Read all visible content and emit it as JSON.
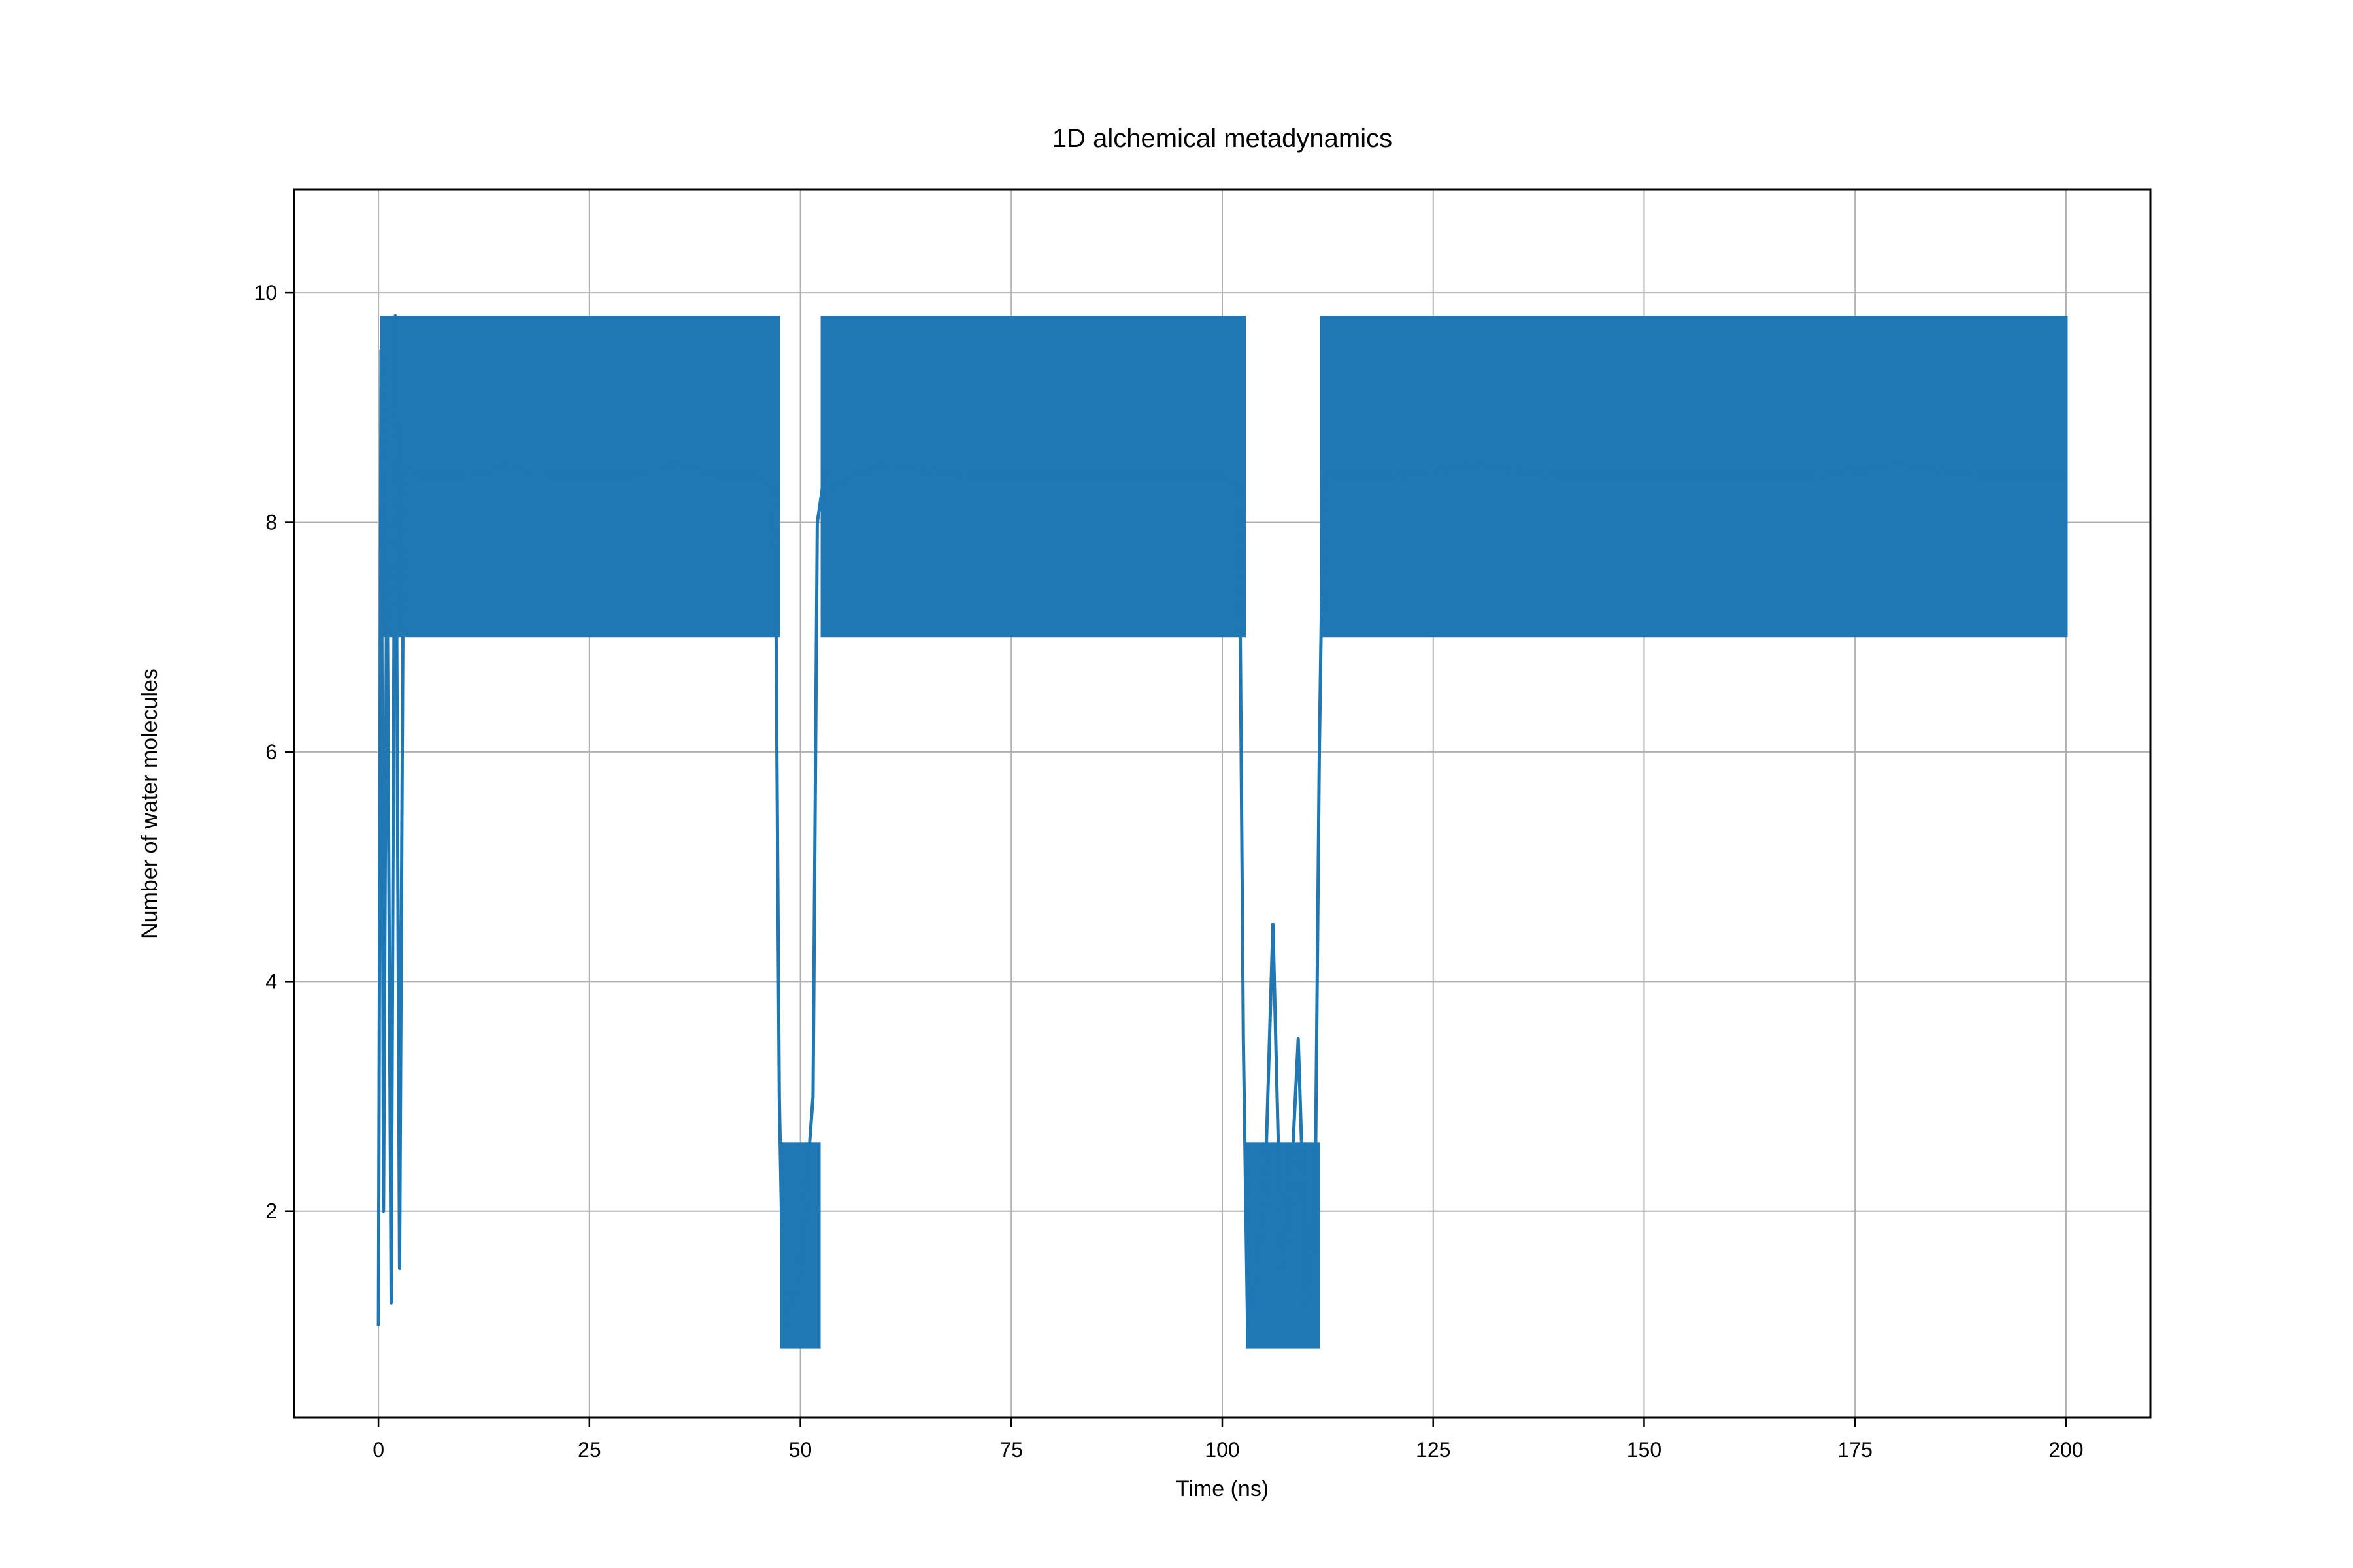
{
  "chart_data": {
    "type": "line",
    "title": "1D alchemical metadynamics",
    "xlabel": "Time (ns)",
    "ylabel": "Number of water molecules",
    "xlim": [
      -10,
      210
    ],
    "ylim": [
      0.2,
      10.9
    ],
    "x_ticks": [
      0,
      25,
      50,
      75,
      100,
      125,
      150,
      175,
      200
    ],
    "y_ticks": [
      2,
      4,
      6,
      8,
      10
    ],
    "grid": true,
    "line_color": "#1f77b4",
    "series": [
      {
        "x": [
          0,
          0.3,
          0.6,
          1.0,
          1.5,
          2.0,
          2.5,
          3,
          5,
          10,
          15,
          20,
          25,
          30,
          35,
          40,
          45,
          47,
          47.5,
          48,
          49,
          50,
          51,
          51.5,
          52,
          53,
          54,
          56,
          60,
          70,
          80,
          90,
          100,
          102,
          102.5,
          103,
          104,
          105,
          106,
          107,
          108,
          109,
          110,
          111,
          111.5,
          112,
          113,
          115,
          120,
          130,
          140,
          150,
          160,
          170,
          180,
          190,
          200
        ],
        "y": [
          1.0,
          9.5,
          2.0,
          8.0,
          1.2,
          9.8,
          1.5,
          8.5,
          8.4,
          8.4,
          8.5,
          8.4,
          8.4,
          8.4,
          8.5,
          8.4,
          8.4,
          8.3,
          3.0,
          1.0,
          1.2,
          1.5,
          2.5,
          3.0,
          8.0,
          8.5,
          8.3,
          8.4,
          8.5,
          8.4,
          8.4,
          8.4,
          8.4,
          8.3,
          3.5,
          1.0,
          1.5,
          2.0,
          4.5,
          1.5,
          2.0,
          3.5,
          1.2,
          2.0,
          6.0,
          8.5,
          8.4,
          8.4,
          8.4,
          8.5,
          8.4,
          8.4,
          8.4,
          8.4,
          8.5,
          8.4,
          8.4
        ]
      }
    ],
    "band_segments": [
      {
        "x_start": 0.2,
        "x_end": 47.6,
        "low": 7.0,
        "high": 9.8
      },
      {
        "x_start": 52.4,
        "x_end": 102.8,
        "low": 7.0,
        "high": 9.8
      },
      {
        "x_start": 111.6,
        "x_end": 200.2,
        "low": 7.0,
        "high": 9.8
      }
    ],
    "dip_segments": [
      {
        "x_start": 47.6,
        "x_end": 52.4,
        "low": 0.8,
        "high": 2.6
      },
      {
        "x_start": 102.8,
        "x_end": 111.6,
        "low": 0.8,
        "high": 2.6
      }
    ]
  }
}
